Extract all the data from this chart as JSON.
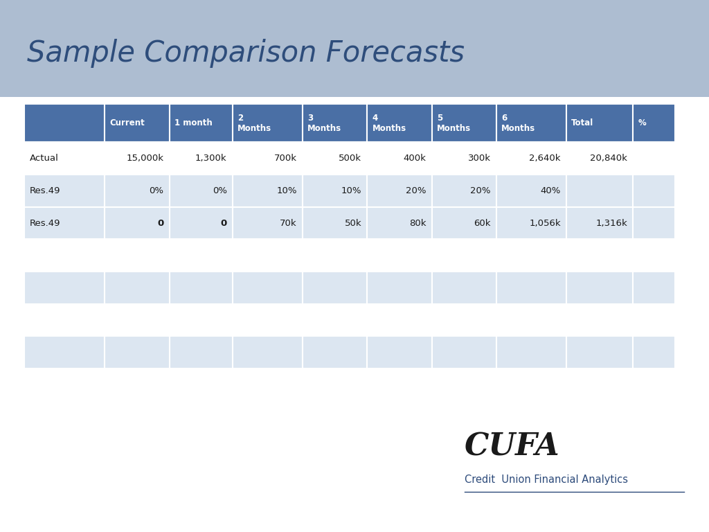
{
  "title": "Sample Comparison Forecasts",
  "title_color": "#2e4d7b",
  "title_bg_color": "#adbdd1",
  "bg_color": "#ffffff",
  "header_bg_color": "#4a6fa5",
  "header_text_color": "#ffffff",
  "columns": [
    "",
    "Current",
    "1 month",
    "2\nMonths",
    "3\nMonths",
    "4\nMonths",
    "5\nMonths",
    "6\nMonths",
    "Total",
    "%"
  ],
  "rows": [
    [
      "Actual",
      "15,000k",
      "1,300k",
      "700k",
      "500k",
      "400k",
      "300k",
      "2,640k",
      "20,840k",
      ""
    ],
    [
      "Res.49",
      "0%",
      "0%",
      "10%",
      "10%",
      "20%",
      "20%",
      "40%",
      "",
      ""
    ],
    [
      "Res.49",
      "0",
      "0",
      "70k",
      "50k",
      "80k",
      "60k",
      "1,056k",
      "1,316k",
      ""
    ],
    [
      "",
      "",
      "",
      "",
      "",
      "",
      "",
      "",
      "",
      ""
    ],
    [
      "",
      "",
      "",
      "",
      "",
      "",
      "",
      "",
      "",
      ""
    ],
    [
      "",
      "",
      "",
      "",
      "",
      "",
      "",
      "",
      "",
      ""
    ],
    [
      "",
      "",
      "",
      "",
      "",
      "",
      "",
      "",
      "",
      ""
    ]
  ],
  "row_bg_colors": [
    "#ffffff",
    "#dce6f1",
    "#ffffff",
    "#dce6f1",
    "#c8d8e8",
    "#dce6f1",
    "#c8d8e8"
  ],
  "cufa_text": "CUFA",
  "cufa_subtitle": "Credit  Union Financial Analytics",
  "cufa_text_color": "#1a1a1a",
  "cufa_subtitle_color": "#2c4a7a",
  "cufa_line_color": "#2c4a7a"
}
